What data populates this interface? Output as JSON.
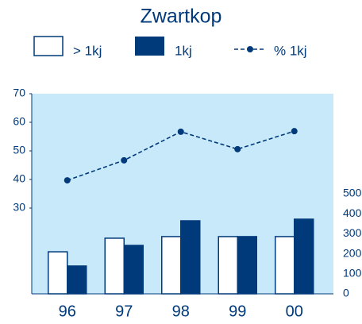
{
  "chart_data": {
    "type": "bar_line",
    "title": "Zwartkop",
    "categories": [
      "96",
      "97",
      "98",
      "99",
      "00"
    ],
    "series": [
      {
        "name": "> 1kj",
        "type": "bar",
        "axis": "y2",
        "color": "#ffffff",
        "values": [
          210,
          278,
          286,
          286,
          286
        ]
      },
      {
        "name": "1kj",
        "type": "bar",
        "axis": "y2",
        "color": "#003a7a",
        "values": [
          139,
          242,
          365,
          286,
          373
        ]
      },
      {
        "name": "% 1kj",
        "type": "line",
        "color": "#003a7a",
        "values": [
          39.7,
          46.7,
          56.7,
          50.6,
          56.9
        ]
      }
    ],
    "ylim": [
      0,
      70
    ],
    "yticks": [
      30,
      40,
      50,
      60,
      70
    ],
    "y2lim": [
      0,
      1000
    ],
    "y2ticks": [
      0,
      100,
      200,
      300,
      400,
      500
    ],
    "background": "#c8e9f9"
  }
}
